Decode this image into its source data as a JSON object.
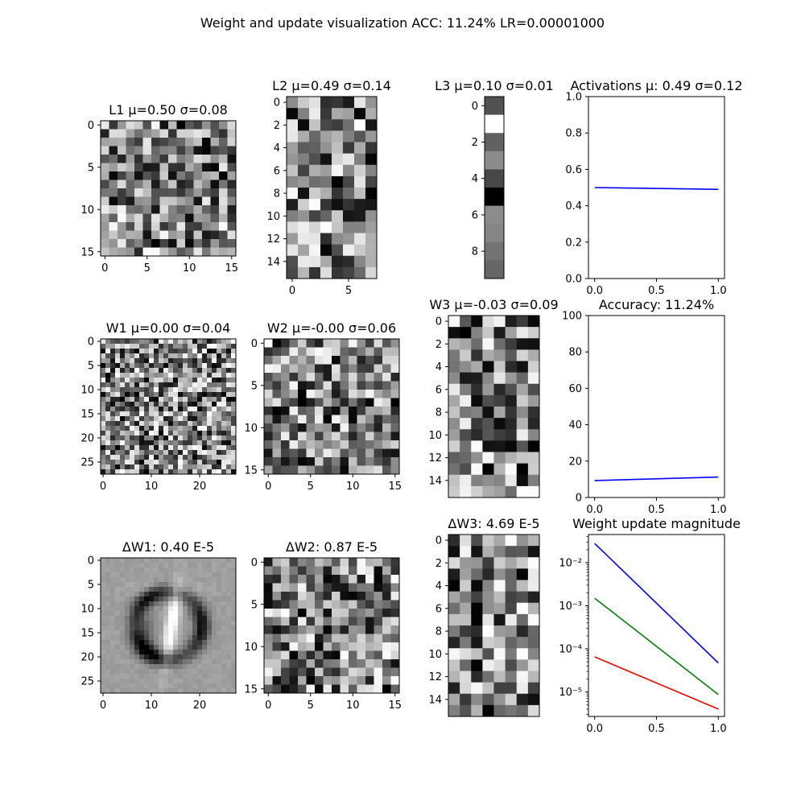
{
  "figure": {
    "suptitle": "Weight and update visualization ACC: 11.24% LR=0.00001000"
  },
  "chart_data": [
    {
      "id": "L1",
      "type": "heatmap",
      "title": "L1 μ=0.50 σ=0.08",
      "rows": 16,
      "cols": 16,
      "pattern": "noise",
      "seed": 11,
      "xticks": [
        0,
        5,
        10,
        15
      ],
      "yticks": [
        0,
        5,
        10,
        15
      ]
    },
    {
      "id": "L2",
      "type": "heatmap",
      "title": "L2 μ=0.49 σ=0.14",
      "rows": 16,
      "cols": 8,
      "pattern": "noise",
      "seed": 23,
      "xticks": [
        0,
        5
      ],
      "yticks": [
        0,
        2,
        4,
        6,
        8,
        10,
        12,
        14
      ]
    },
    {
      "id": "L3",
      "type": "heatmap",
      "title": "L3 μ=0.10 σ=0.01",
      "rows": 10,
      "cols": 1,
      "pattern": "given",
      "values": [
        0.32,
        1.0,
        0.38,
        0.55,
        0.28,
        0.0,
        0.55,
        0.52,
        0.45,
        0.4
      ],
      "xticks": [],
      "yticks": [
        0,
        2,
        4,
        6,
        8
      ]
    },
    {
      "id": "ACT",
      "type": "line",
      "title": "Activations μ: 0.49 σ=0.12",
      "xlim": [
        -0.05,
        1.05
      ],
      "ylim": [
        0,
        1
      ],
      "xticks": [
        0.0,
        0.5,
        1.0
      ],
      "yticks": [
        0.0,
        0.2,
        0.4,
        0.6,
        0.8,
        1.0
      ],
      "ytick_labels": [
        "0.0",
        "0.2",
        "0.4",
        "0.6",
        "0.8",
        "1.0"
      ],
      "log_y": false,
      "series": [
        {
          "color": "#0000ff",
          "x": [
            0,
            1
          ],
          "y": [
            0.5,
            0.49
          ]
        }
      ]
    },
    {
      "id": "W1",
      "type": "heatmap",
      "title": "W1 μ=0.00 σ=0.04",
      "rows": 28,
      "cols": 28,
      "pattern": "noise",
      "seed": 37,
      "xticks": [
        0,
        10,
        20
      ],
      "yticks": [
        0,
        5,
        10,
        15,
        20,
        25
      ]
    },
    {
      "id": "W2",
      "type": "heatmap",
      "title": "W2 μ=-0.00 σ=0.06",
      "rows": 16,
      "cols": 16,
      "pattern": "noise",
      "seed": 41,
      "xticks": [
        0,
        5,
        10,
        15
      ],
      "yticks": [
        0,
        5,
        10,
        15
      ]
    },
    {
      "id": "W3",
      "type": "heatmap",
      "title": "W3 μ=-0.03 σ=0.09",
      "rows": 16,
      "cols": 8,
      "pattern": "noise",
      "seed": 53,
      "xticks": [],
      "yticks": [
        0,
        2,
        4,
        6,
        8,
        10,
        12,
        14
      ]
    },
    {
      "id": "ACC",
      "type": "line",
      "title": "Accuracy: 11.24%",
      "xlim": [
        -0.05,
        1.05
      ],
      "ylim": [
        0,
        100
      ],
      "xticks": [
        0.0,
        0.5,
        1.0
      ],
      "yticks": [
        0,
        20,
        40,
        60,
        80,
        100
      ],
      "ytick_labels": [
        "0",
        "20",
        "40",
        "60",
        "80",
        "100"
      ],
      "log_y": false,
      "series": [
        {
          "color": "#0000ff",
          "x": [
            0,
            1
          ],
          "y": [
            9.3,
            11.24
          ]
        }
      ]
    },
    {
      "id": "DW1",
      "type": "heatmap",
      "title": "ΔW1: 0.40 E-5",
      "title_color": "#ff0000",
      "rows": 28,
      "cols": 28,
      "pattern": "digit",
      "seed": 7,
      "xticks": [
        0,
        10,
        20
      ],
      "yticks": [
        0,
        5,
        10,
        15,
        20,
        25
      ]
    },
    {
      "id": "DW2",
      "type": "heatmap",
      "title": "ΔW2: 0.87 E-5",
      "title_color": "#008000",
      "rows": 16,
      "cols": 16,
      "pattern": "noise",
      "seed": 61,
      "xticks": [
        0,
        5,
        10,
        15
      ],
      "yticks": [
        0,
        5,
        10,
        15
      ]
    },
    {
      "id": "DW3",
      "type": "heatmap",
      "title": "ΔW3: 4.69 E-5",
      "title_color": "#0000ff",
      "rows": 16,
      "cols": 8,
      "pattern": "noise",
      "seed": 71,
      "xticks": [],
      "yticks": [
        0,
        2,
        4,
        6,
        8,
        10,
        12,
        14
      ]
    },
    {
      "id": "UPD",
      "type": "line",
      "title": "Weight update magnitude",
      "xlim": [
        -0.05,
        1.05
      ],
      "ylim": [
        2.7e-06,
        0.045
      ],
      "xticks": [
        0.0,
        0.5,
        1.0
      ],
      "yticks": [
        1e-05,
        0.0001,
        0.001,
        0.01
      ],
      "ytick_labels": [
        "10⁻⁵",
        "10⁻⁴",
        "10⁻³",
        "10⁻²"
      ],
      "log_y": true,
      "series": [
        {
          "color": "#0000ff",
          "x": [
            0,
            1
          ],
          "y": [
            0.028,
            4.69e-05
          ]
        },
        {
          "color": "#008000",
          "x": [
            0,
            1
          ],
          "y": [
            0.0015,
            8.7e-06
          ]
        },
        {
          "color": "#ff0000",
          "x": [
            0,
            1
          ],
          "y": [
            6.5e-05,
            4e-06
          ]
        }
      ]
    }
  ]
}
